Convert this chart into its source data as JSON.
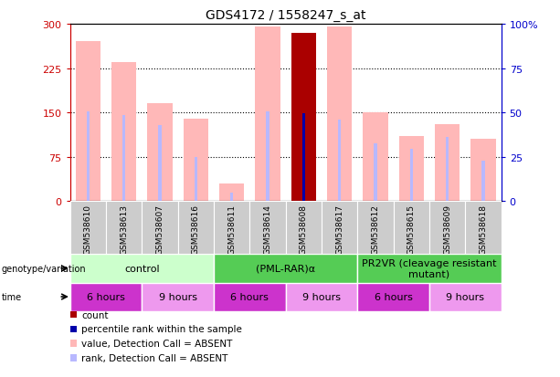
{
  "title": "GDS4172 / 1558247_s_at",
  "samples": [
    "GSM538610",
    "GSM538613",
    "GSM538607",
    "GSM538616",
    "GSM538611",
    "GSM538614",
    "GSM538608",
    "GSM538617",
    "GSM538612",
    "GSM538615",
    "GSM538609",
    "GSM538618"
  ],
  "count_values": [
    0,
    0,
    0,
    0,
    0,
    0,
    285,
    0,
    0,
    0,
    0,
    0
  ],
  "percentile_values": [
    0,
    0,
    0,
    0,
    0,
    0,
    148,
    0,
    0,
    0,
    0,
    0
  ],
  "value_absent": [
    270,
    235,
    165,
    140,
    30,
    295,
    0,
    295,
    150,
    110,
    130,
    105
  ],
  "rank_absent": [
    152,
    145,
    128,
    75,
    15,
    152,
    0,
    138,
    98,
    88,
    108,
    68
  ],
  "ylim": [
    0,
    300
  ],
  "y2lim": [
    0,
    100
  ],
  "yticks": [
    0,
    75,
    150,
    225,
    300
  ],
  "ytick_labels": [
    "0",
    "75",
    "150",
    "225",
    "300"
  ],
  "y2ticks": [
    0,
    25,
    50,
    75,
    100
  ],
  "y2tick_labels": [
    "0",
    "25",
    "50",
    "75",
    "100%"
  ],
  "count_color": "#aa0000",
  "percentile_color": "#0000aa",
  "value_absent_color": "#ffb8b8",
  "rank_absent_color": "#b8b8ff",
  "genotype_colors": [
    "#ccffcc",
    "#55cc55",
    "#55cc55"
  ],
  "genotype_labels": [
    "control",
    "(PML-RAR)α",
    "PR2VR (cleavage resistant\nmutant)"
  ],
  "genotype_ranges": [
    [
      0,
      4
    ],
    [
      4,
      8
    ],
    [
      8,
      12
    ]
  ],
  "time_colors": [
    "#cc33cc",
    "#ee99ee",
    "#cc33cc",
    "#ee99ee",
    "#cc33cc",
    "#ee99ee"
  ],
  "time_labels": [
    "6 hours",
    "9 hours",
    "6 hours",
    "9 hours",
    "6 hours",
    "9 hours"
  ],
  "time_ranges": [
    [
      0,
      2
    ],
    [
      2,
      4
    ],
    [
      4,
      6
    ],
    [
      6,
      8
    ],
    [
      8,
      10
    ],
    [
      10,
      12
    ]
  ],
  "legend_items": [
    {
      "label": "count",
      "color": "#aa0000"
    },
    {
      "label": "percentile rank within the sample",
      "color": "#0000aa"
    },
    {
      "label": "value, Detection Call = ABSENT",
      "color": "#ffb8b8"
    },
    {
      "label": "rank, Detection Call = ABSENT",
      "color": "#b8b8ff"
    }
  ],
  "tick_color_left": "#cc0000",
  "tick_color_right": "#0000cc",
  "sample_box_color": "#cccccc",
  "grid_yticks": [
    75,
    150,
    225
  ]
}
